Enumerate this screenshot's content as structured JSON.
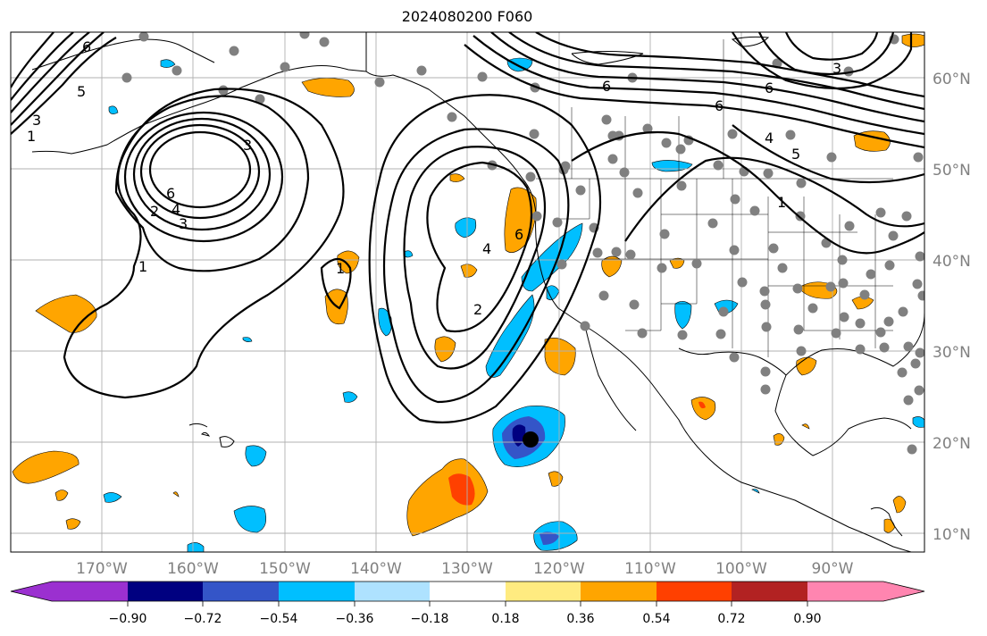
{
  "title": "2024080200 F060",
  "lat_labels": [
    "60°N",
    "50°N",
    "40°N",
    "30°N",
    "20°N",
    "10°N"
  ],
  "lon_labels": [
    "170°W",
    "160°W",
    "150°W",
    "140°W",
    "130°W",
    "120°W",
    "110°W",
    "100°W",
    "90°W"
  ],
  "colorbar": {
    "ticks": [
      "−0.90",
      "−0.72",
      "−0.54",
      "−0.36",
      "−0.18",
      "0.18",
      "0.36",
      "0.54",
      "0.72",
      "0.90"
    ],
    "colors": [
      "#9b30d0",
      "#000080",
      "#3455c8",
      "#00bfff",
      "#aee2ff",
      "#ffffff",
      "#ffeb80",
      "#ffa500",
      "#ff4000",
      "#b22222",
      "#ff85b0"
    ]
  },
  "contour_labels": [
    "1",
    "2",
    "3",
    "4",
    "5",
    "6"
  ],
  "fill_colors": {
    "orange": "#ffa500",
    "red": "#ff4000",
    "light_blue": "#00bfff",
    "medium_blue": "#3455c8",
    "dark_blue": "#000080"
  },
  "station_color": "#808080"
}
